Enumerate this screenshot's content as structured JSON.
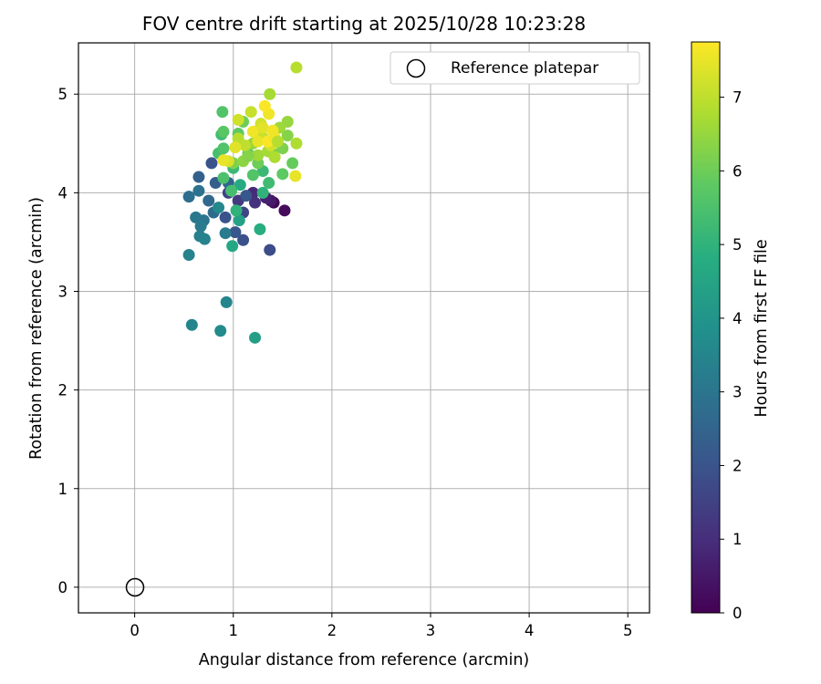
{
  "chart_data": {
    "type": "scatter",
    "title": "FOV centre drift starting at 2025/10/28 10:23:28",
    "xlabel": "Angular distance from reference (arcmin)",
    "ylabel": "Rotation from reference (arcmin)",
    "xlim": [
      -0.57,
      5.22
    ],
    "ylim": [
      -0.26,
      5.52
    ],
    "xticks": [
      "0",
      "1",
      "2",
      "3",
      "4",
      "5"
    ],
    "yticks": [
      "0",
      "1",
      "2",
      "3",
      "4",
      "5"
    ],
    "grid": true,
    "legend": {
      "position": "top-right",
      "entries": [
        "Reference platepar"
      ]
    },
    "reference_point": {
      "x": 0,
      "y": 0,
      "name": "Reference platepar"
    },
    "colorbar": {
      "label": "Hours from first FF file",
      "min": 0,
      "max": 7.75,
      "ticks": [
        "0",
        "1",
        "2",
        "3",
        "4",
        "5",
        "6",
        "7"
      ],
      "colormap": "viridis"
    },
    "points": [
      {
        "x": 1.41,
        "y": 3.9,
        "h": 0.1
      },
      {
        "x": 1.52,
        "y": 3.82,
        "h": 0.2
      },
      {
        "x": 1.38,
        "y": 3.92,
        "h": 0.5
      },
      {
        "x": 1.33,
        "y": 3.95,
        "h": 0.7
      },
      {
        "x": 1.2,
        "y": 4.0,
        "h": 0.9
      },
      {
        "x": 1.22,
        "y": 3.9,
        "h": 1.1
      },
      {
        "x": 1.05,
        "y": 3.92,
        "h": 1.3
      },
      {
        "x": 0.95,
        "y": 4.0,
        "h": 1.5
      },
      {
        "x": 1.1,
        "y": 3.8,
        "h": 1.6
      },
      {
        "x": 1.37,
        "y": 3.42,
        "h": 1.8
      },
      {
        "x": 1.1,
        "y": 3.52,
        "h": 1.9
      },
      {
        "x": 0.78,
        "y": 4.3,
        "h": 2.0
      },
      {
        "x": 0.92,
        "y": 3.75,
        "h": 2.0
      },
      {
        "x": 1.02,
        "y": 3.6,
        "h": 2.1
      },
      {
        "x": 1.13,
        "y": 3.97,
        "h": 2.1
      },
      {
        "x": 0.82,
        "y": 4.1,
        "h": 2.3
      },
      {
        "x": 0.65,
        "y": 4.16,
        "h": 2.4
      },
      {
        "x": 0.95,
        "y": 4.1,
        "h": 2.5
      },
      {
        "x": 0.75,
        "y": 3.92,
        "h": 2.6
      },
      {
        "x": 0.8,
        "y": 3.8,
        "h": 2.7
      },
      {
        "x": 0.55,
        "y": 3.96,
        "h": 2.8
      },
      {
        "x": 0.65,
        "y": 4.02,
        "h": 2.9
      },
      {
        "x": 0.7,
        "y": 3.72,
        "h": 3.0
      },
      {
        "x": 0.62,
        "y": 3.75,
        "h": 3.1
      },
      {
        "x": 0.92,
        "y": 3.59,
        "h": 3.2
      },
      {
        "x": 0.67,
        "y": 3.66,
        "h": 3.2
      },
      {
        "x": 0.66,
        "y": 3.56,
        "h": 3.3
      },
      {
        "x": 0.71,
        "y": 3.53,
        "h": 3.4
      },
      {
        "x": 0.55,
        "y": 3.37,
        "h": 3.4
      },
      {
        "x": 0.93,
        "y": 2.89,
        "h": 3.5
      },
      {
        "x": 0.58,
        "y": 2.66,
        "h": 3.5
      },
      {
        "x": 0.87,
        "y": 2.6,
        "h": 3.7
      },
      {
        "x": 1.22,
        "y": 2.53,
        "h": 4.3
      },
      {
        "x": 0.85,
        "y": 3.85,
        "h": 3.6
      },
      {
        "x": 1.06,
        "y": 3.72,
        "h": 4.4
      },
      {
        "x": 0.99,
        "y": 3.46,
        "h": 4.6
      },
      {
        "x": 1.27,
        "y": 3.63,
        "h": 4.8
      },
      {
        "x": 1.03,
        "y": 3.82,
        "h": 5.0
      },
      {
        "x": 1.07,
        "y": 4.08,
        "h": 4.7
      },
      {
        "x": 1.3,
        "y": 4.0,
        "h": 5.0
      },
      {
        "x": 1.36,
        "y": 4.1,
        "h": 5.3
      },
      {
        "x": 0.98,
        "y": 4.02,
        "h": 5.4
      },
      {
        "x": 0.9,
        "y": 4.15,
        "h": 5.5
      },
      {
        "x": 1.0,
        "y": 4.25,
        "h": 5.2
      },
      {
        "x": 1.3,
        "y": 4.22,
        "h": 5.2
      },
      {
        "x": 1.2,
        "y": 4.18,
        "h": 5.6
      },
      {
        "x": 1.5,
        "y": 4.19,
        "h": 5.8
      },
      {
        "x": 1.6,
        "y": 4.3,
        "h": 5.9
      },
      {
        "x": 0.85,
        "y": 4.4,
        "h": 5.4
      },
      {
        "x": 0.9,
        "y": 4.45,
        "h": 5.6
      },
      {
        "x": 0.88,
        "y": 4.59,
        "h": 5.3
      },
      {
        "x": 0.9,
        "y": 4.62,
        "h": 5.7
      },
      {
        "x": 0.89,
        "y": 4.82,
        "h": 5.6
      },
      {
        "x": 1.1,
        "y": 4.72,
        "h": 6.0
      },
      {
        "x": 1.05,
        "y": 4.6,
        "h": 5.8
      },
      {
        "x": 1.15,
        "y": 4.4,
        "h": 5.9
      },
      {
        "x": 1.25,
        "y": 4.3,
        "h": 6.0
      },
      {
        "x": 1.4,
        "y": 4.4,
        "h": 6.1
      },
      {
        "x": 1.5,
        "y": 4.45,
        "h": 6.2
      },
      {
        "x": 1.55,
        "y": 4.58,
        "h": 6.3
      },
      {
        "x": 1.55,
        "y": 4.72,
        "h": 6.5
      },
      {
        "x": 1.47,
        "y": 4.66,
        "h": 6.6
      },
      {
        "x": 1.37,
        "y": 5.0,
        "h": 6.7
      },
      {
        "x": 1.64,
        "y": 4.5,
        "h": 6.8
      },
      {
        "x": 1.64,
        "y": 5.27,
        "h": 6.9
      },
      {
        "x": 1.0,
        "y": 4.3,
        "h": 6.2
      },
      {
        "x": 1.1,
        "y": 4.32,
        "h": 6.4
      },
      {
        "x": 1.2,
        "y": 4.5,
        "h": 6.5
      },
      {
        "x": 1.25,
        "y": 4.38,
        "h": 6.6
      },
      {
        "x": 1.35,
        "y": 4.42,
        "h": 6.7
      },
      {
        "x": 1.42,
        "y": 4.36,
        "h": 6.8
      },
      {
        "x": 1.05,
        "y": 4.55,
        "h": 6.9
      },
      {
        "x": 1.12,
        "y": 4.48,
        "h": 7.0
      },
      {
        "x": 1.22,
        "y": 4.62,
        "h": 7.0
      },
      {
        "x": 1.3,
        "y": 4.56,
        "h": 7.1
      },
      {
        "x": 1.38,
        "y": 4.48,
        "h": 7.2
      },
      {
        "x": 1.28,
        "y": 4.7,
        "h": 7.2
      },
      {
        "x": 1.18,
        "y": 4.82,
        "h": 7.1
      },
      {
        "x": 1.05,
        "y": 4.74,
        "h": 7.2
      },
      {
        "x": 0.95,
        "y": 4.32,
        "h": 7.3
      },
      {
        "x": 1.63,
        "y": 4.17,
        "h": 7.5
      },
      {
        "x": 1.36,
        "y": 4.8,
        "h": 7.6
      },
      {
        "x": 1.32,
        "y": 4.88,
        "h": 7.7
      },
      {
        "x": 1.2,
        "y": 4.62,
        "h": 7.6
      },
      {
        "x": 1.25,
        "y": 4.52,
        "h": 7.5
      },
      {
        "x": 1.35,
        "y": 4.52,
        "h": 7.7
      },
      {
        "x": 1.42,
        "y": 4.56,
        "h": 7.6
      },
      {
        "x": 1.02,
        "y": 4.46,
        "h": 7.4
      },
      {
        "x": 0.9,
        "y": 4.33,
        "h": 7.5
      },
      {
        "x": 1.3,
        "y": 4.66,
        "h": 7.4
      },
      {
        "x": 1.4,
        "y": 4.63,
        "h": 7.6
      },
      {
        "x": 1.15,
        "y": 4.37,
        "h": 6.3
      },
      {
        "x": 1.45,
        "y": 4.52,
        "h": 6.9
      }
    ]
  }
}
